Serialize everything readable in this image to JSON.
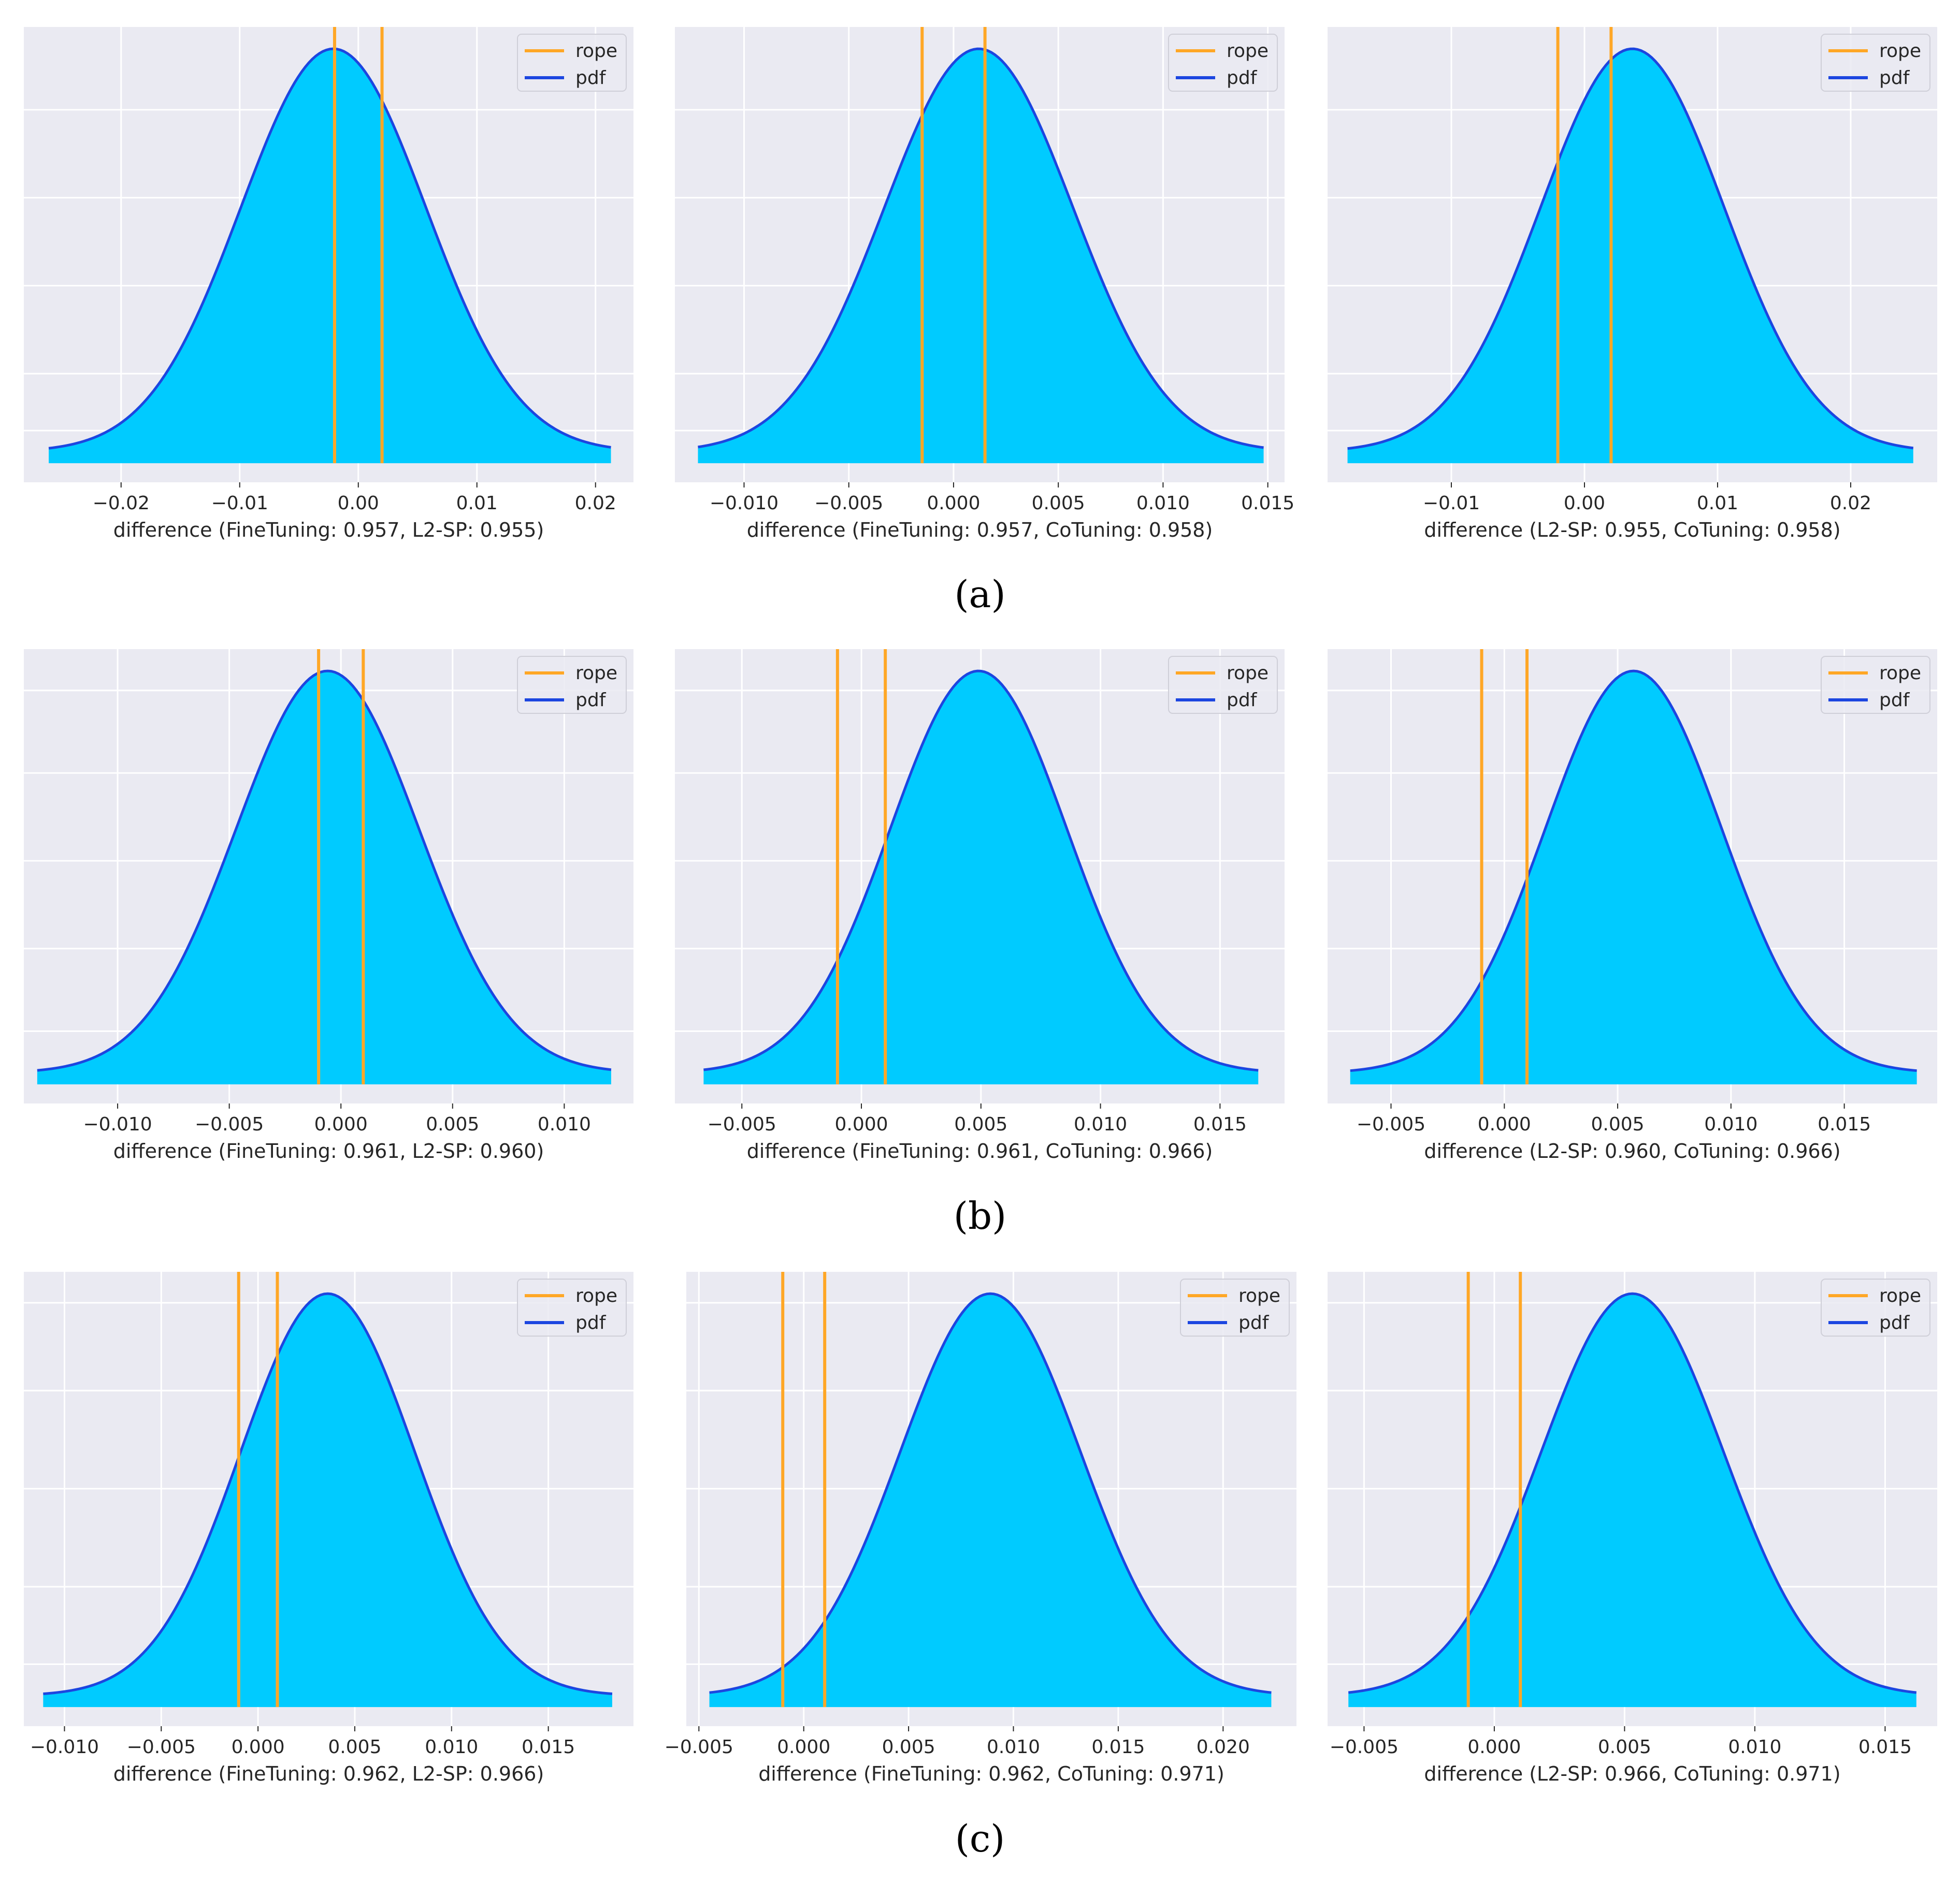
{
  "colors": {
    "rope": "#ffa726",
    "pdf_line": "#1c46e0",
    "pdf_fill": "#00cbff",
    "background": "#eaeaf2",
    "grid": "#ffffff"
  },
  "legend": {
    "rope": "rope",
    "pdf": "pdf"
  },
  "row_labels": [
    "(a)",
    "(b)",
    "(c)"
  ],
  "chart_data": [
    {
      "type": "area",
      "row": 0,
      "col": 0,
      "xlabel": "difference (FineTuning: 0.957, L2-SP: 0.955)",
      "xlim": [
        -0.0282,
        0.0232
      ],
      "xticks": [
        -0.02,
        -0.01,
        0.0,
        0.01,
        0.02
      ],
      "tick_labels": [
        "−0.02",
        "−0.01",
        "0.00",
        "0.01",
        "0.02"
      ],
      "pdf": {
        "mean": -0.0021,
        "sd": 0.0078,
        "x_from": -0.0261,
        "x_to": 0.0213
      },
      "rope": [
        -0.002,
        0.002
      ],
      "legend": [
        "rope",
        "pdf"
      ]
    },
    {
      "type": "area",
      "row": 0,
      "col": 1,
      "xlabel": "difference (FineTuning: 0.957, CoTuning: 0.958)",
      "xlim": [
        -0.0133,
        0.0158
      ],
      "xticks": [
        -0.01,
        -0.005,
        0.0,
        0.005,
        0.01,
        0.015
      ],
      "tick_labels": [
        "−0.010",
        "−0.005",
        "0.000",
        "0.005",
        "0.010",
        "0.015"
      ],
      "pdf": {
        "mean": 0.0012,
        "sd": 0.0045,
        "x_from": -0.0122,
        "x_to": 0.0148
      },
      "rope": [
        -0.0015,
        0.0015
      ],
      "legend": [
        "rope",
        "pdf"
      ]
    },
    {
      "type": "area",
      "row": 0,
      "col": 2,
      "xlabel": "difference (L2-SP: 0.955, CoTuning: 0.958)",
      "xlim": [
        -0.0193,
        0.0265
      ],
      "xticks": [
        -0.01,
        0.0,
        0.01,
        0.02
      ],
      "tick_labels": [
        "−0.01",
        "0.00",
        "0.01",
        "0.02"
      ],
      "pdf": {
        "mean": 0.0036,
        "sd": 0.0069,
        "x_from": -0.0178,
        "x_to": 0.0247
      },
      "rope": [
        -0.002,
        0.002
      ],
      "legend": [
        "rope",
        "pdf"
      ]
    },
    {
      "type": "area",
      "row": 1,
      "col": 0,
      "xlabel": "difference (FineTuning: 0.961, L2-SP: 0.960)",
      "xlim": [
        -0.0142,
        0.0131
      ],
      "xticks": [
        -0.01,
        -0.005,
        0.0,
        0.005,
        0.01
      ],
      "tick_labels": [
        "−0.010",
        "−0.005",
        "0.000",
        "0.005",
        "0.010"
      ],
      "pdf": {
        "mean": -0.0006,
        "sd": 0.0041,
        "x_from": -0.0136,
        "x_to": 0.0121
      },
      "rope": [
        -0.001,
        0.001
      ],
      "legend": [
        "rope",
        "pdf"
      ]
    },
    {
      "type": "area",
      "row": 1,
      "col": 1,
      "xlabel": "difference (FineTuning: 0.961, CoTuning: 0.966)",
      "xlim": [
        -0.0078,
        0.0177
      ],
      "xticks": [
        -0.005,
        0.0,
        0.005,
        0.01,
        0.015
      ],
      "tick_labels": [
        "−0.005",
        "0.000",
        "0.005",
        "0.010",
        "0.015"
      ],
      "pdf": {
        "mean": 0.0049,
        "sd": 0.0037,
        "x_from": -0.0066,
        "x_to": 0.0166
      },
      "rope": [
        -0.001,
        0.001
      ],
      "legend": [
        "rope",
        "pdf"
      ]
    },
    {
      "type": "area",
      "row": 1,
      "col": 2,
      "xlabel": "difference (L2-SP: 0.960, CoTuning: 0.966)",
      "xlim": [
        -0.0078,
        0.0191
      ],
      "xticks": [
        -0.005,
        0.0,
        0.005,
        0.01,
        0.015
      ],
      "tick_labels": [
        "−0.005",
        "0.000",
        "0.005",
        "0.010",
        "0.015"
      ],
      "pdf": {
        "mean": 0.0057,
        "sd": 0.0039,
        "x_from": -0.0068,
        "x_to": 0.0182
      },
      "rope": [
        -0.001,
        0.001
      ],
      "legend": [
        "rope",
        "pdf"
      ]
    },
    {
      "type": "area",
      "row": 2,
      "col": 0,
      "xlabel": "difference (FineTuning: 0.962, L2-SP: 0.966)",
      "xlim": [
        -0.0121,
        0.0194
      ],
      "xticks": [
        -0.01,
        -0.005,
        0.0,
        0.005,
        0.01,
        0.015
      ],
      "tick_labels": [
        "−0.010",
        "−0.005",
        "0.000",
        "0.005",
        "0.010",
        "0.015"
      ],
      "pdf": {
        "mean": 0.0036,
        "sd": 0.0045,
        "x_from": -0.0111,
        "x_to": 0.0183
      },
      "rope": [
        -0.001,
        0.001
      ],
      "legend": [
        "rope",
        "pdf"
      ]
    },
    {
      "type": "area",
      "row": 2,
      "col": 1,
      "xlabel": "difference (FineTuning: 0.962, CoTuning: 0.971)",
      "xlim": [
        -0.0056,
        0.0235
      ],
      "xticks": [
        -0.005,
        0.0,
        0.005,
        0.01,
        0.015,
        0.02
      ],
      "tick_labels": [
        "−0.005",
        "0.000",
        "0.005",
        "0.010",
        "0.015",
        "0.020"
      ],
      "pdf": {
        "mean": 0.0089,
        "sd": 0.0043,
        "x_from": -0.0045,
        "x_to": 0.0223
      },
      "rope": [
        -0.001,
        0.001
      ],
      "legend": [
        "rope",
        "pdf"
      ]
    },
    {
      "type": "area",
      "row": 2,
      "col": 2,
      "xlabel": "difference (L2-SP: 0.966, CoTuning: 0.971)",
      "xlim": [
        -0.0064,
        0.017
      ],
      "xticks": [
        -0.005,
        0.0,
        0.005,
        0.01,
        0.015
      ],
      "tick_labels": [
        "−0.005",
        "0.000",
        "0.005",
        "0.010",
        "0.015"
      ],
      "pdf": {
        "mean": 0.0053,
        "sd": 0.0035,
        "x_from": -0.0056,
        "x_to": 0.0162
      },
      "rope": [
        -0.001,
        0.001
      ],
      "legend": [
        "rope",
        "pdf"
      ]
    }
  ]
}
